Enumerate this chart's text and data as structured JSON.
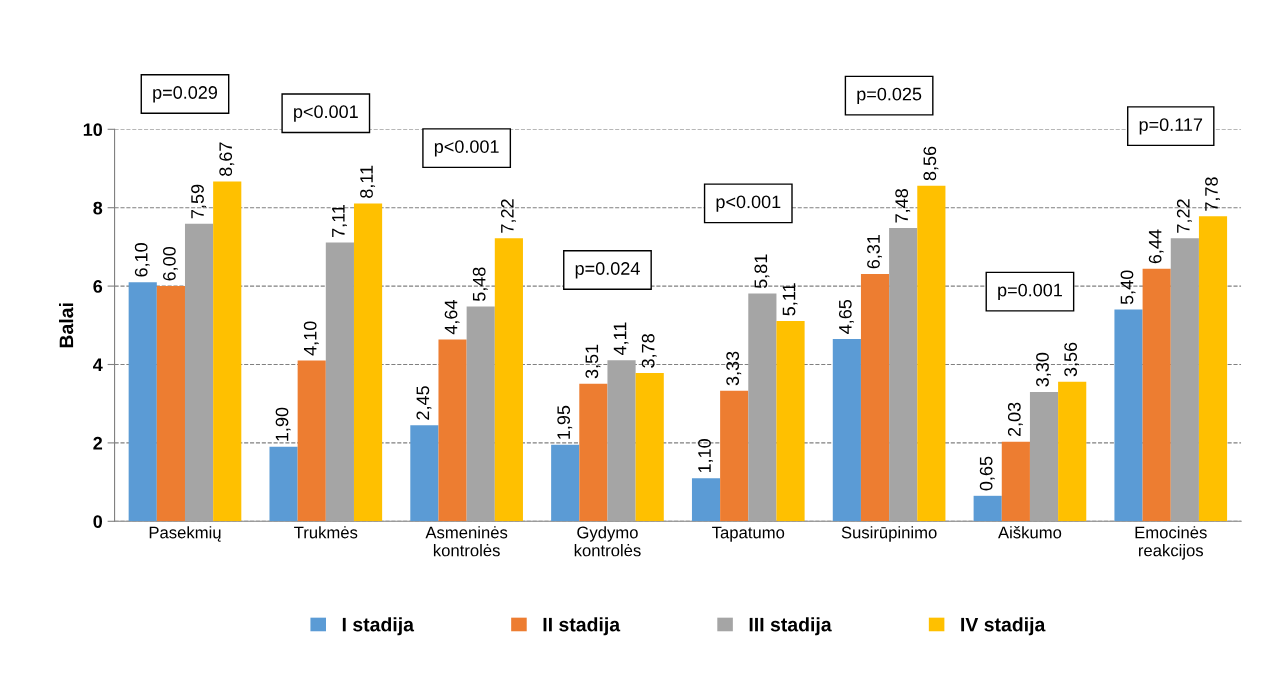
{
  "chart_data": {
    "type": "bar",
    "ylabel": "Balai",
    "categories": [
      "Pasekmių",
      "Trukmės",
      "Asmeninės\nkontrolės",
      "Gydymo\nkontrolės",
      "Tapatumo",
      "Susirūpinimo",
      "Aiškumo",
      "Emocinės\nreakcijos"
    ],
    "series": [
      {
        "name": "I stadija",
        "color": "#5b9bd5",
        "values": [
          6.1,
          1.9,
          2.45,
          1.95,
          1.1,
          4.65,
          0.65,
          5.4
        ],
        "value_labels": [
          "6,10",
          "1,90",
          "2,45",
          "1,95",
          "1,10",
          "4,65",
          "0,65",
          "5,40"
        ]
      },
      {
        "name": "II stadija",
        "color": "#ed7d31",
        "values": [
          6.0,
          4.1,
          4.64,
          3.51,
          3.33,
          6.31,
          2.03,
          6.44
        ],
        "value_labels": [
          "6,00",
          "4,10",
          "4,64",
          "3,51",
          "3,33",
          "6,31",
          "2,03",
          "6,44"
        ]
      },
      {
        "name": "III stadija",
        "color": "#a5a5a5",
        "values": [
          7.59,
          7.11,
          5.48,
          4.11,
          5.81,
          7.48,
          3.3,
          7.22
        ],
        "value_labels": [
          "7,59",
          "7,11",
          "5,48",
          "4,11",
          "5,81",
          "7,48",
          "3,30",
          "7,22"
        ]
      },
      {
        "name": "IV stadija",
        "color": "#ffc000",
        "values": [
          8.67,
          8.11,
          7.22,
          3.78,
          5.11,
          8.56,
          3.56,
          7.78
        ],
        "value_labels": [
          "8,67",
          "8,11",
          "7,22",
          "3,78",
          "5,11",
          "8,56",
          "3,56",
          "7,78"
        ]
      }
    ],
    "ylim": [
      0,
      10
    ],
    "yticks": [
      0,
      2,
      4,
      6,
      8,
      10
    ],
    "grid": "y",
    "legend": "bottom",
    "annotations": [
      "p=0.029",
      "p<0.001",
      "p<0.001",
      "p=0.024",
      "p<0.001",
      "p=0.025",
      "p=0.001",
      "p=0.117"
    ]
  }
}
